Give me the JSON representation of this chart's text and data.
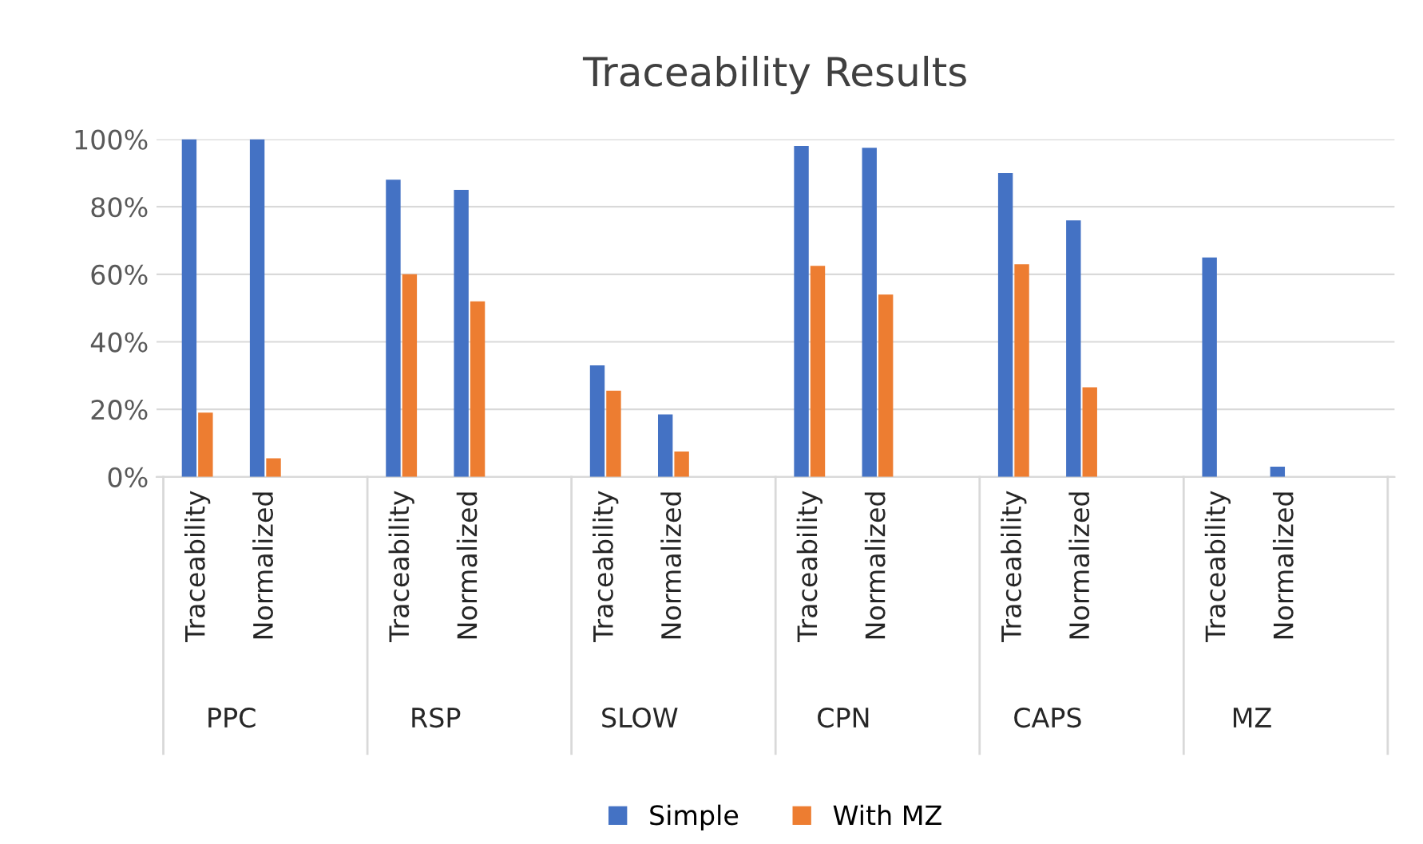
{
  "chart_data": {
    "type": "bar",
    "title": "Traceability Results",
    "categories": [
      "Traceability",
      "Normalized",
      null,
      "Traceability",
      "Normalized",
      null,
      "Traceability",
      "Normalized",
      null,
      "Traceability",
      "Normalized",
      null,
      "Traceability",
      "Normalized",
      null,
      "Traceability",
      "Normalized",
      null
    ],
    "series": [
      {
        "name": "Simple",
        "color": "#4472c4",
        "values": [
          100,
          100,
          null,
          88,
          85,
          null,
          33,
          18.5,
          null,
          98,
          97.5,
          null,
          90,
          76,
          null,
          65,
          3,
          null
        ]
      },
      {
        "name": "With MZ",
        "color": "#ed7d31",
        "values": [
          19,
          5.5,
          null,
          60,
          52,
          null,
          25.5,
          7.5,
          null,
          62.5,
          54,
          null,
          63,
          26.5,
          null,
          null,
          null,
          null
        ]
      }
    ],
    "annotations": [
      "PPC",
      "RSP",
      "SLOW",
      "CPN",
      "CAPS",
      "MZ"
    ],
    "ylim": [
      0,
      100
    ],
    "yticks": [
      {
        "value": 0,
        "label": "0%"
      },
      {
        "value": 20,
        "label": "20%"
      },
      {
        "value": 40,
        "label": "40%"
      },
      {
        "value": 60,
        "label": "60%"
      },
      {
        "value": 80,
        "label": "80%"
      },
      {
        "value": 100,
        "label": "100%"
      }
    ],
    "grid": "y",
    "legend": "bottom"
  }
}
